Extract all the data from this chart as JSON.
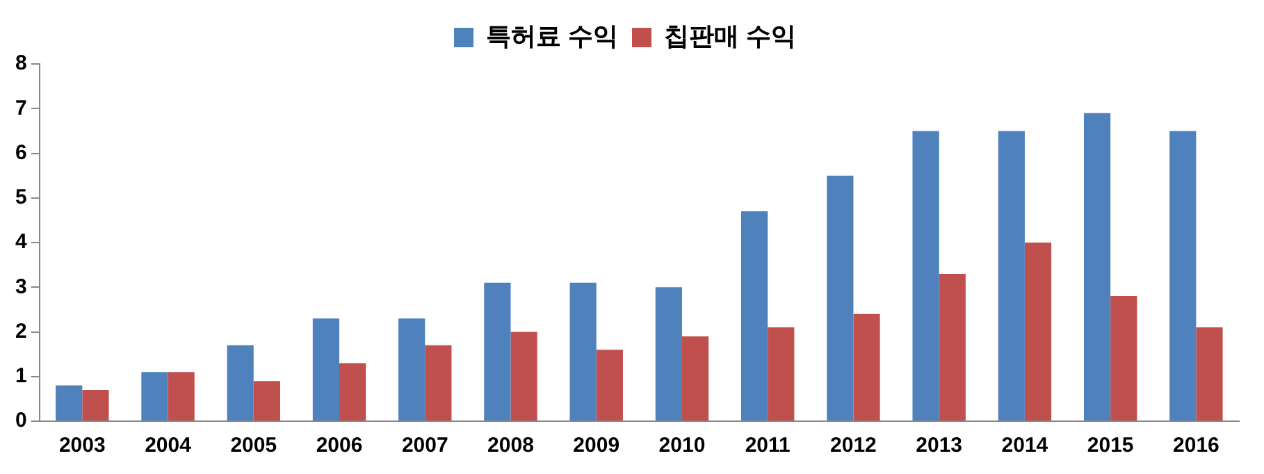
{
  "chart_data": {
    "type": "bar",
    "categories": [
      "2003",
      "2004",
      "2005",
      "2006",
      "2007",
      "2008",
      "2009",
      "2010",
      "2011",
      "2012",
      "2013",
      "2014",
      "2015",
      "2016"
    ],
    "series": [
      {
        "name": "특허료 수익",
        "color": "#4f81bd",
        "values": [
          0.8,
          1.1,
          1.7,
          2.3,
          2.3,
          3.1,
          3.1,
          3.0,
          4.7,
          5.5,
          6.5,
          6.5,
          6.9,
          6.5
        ]
      },
      {
        "name": "칩판매 수익",
        "color": "#c0504d",
        "values": [
          0.7,
          1.1,
          0.9,
          1.3,
          1.7,
          2.0,
          1.6,
          1.9,
          2.1,
          2.4,
          3.3,
          4.0,
          2.8,
          2.1
        ]
      }
    ],
    "ylim": [
      0,
      8
    ],
    "yticks": [
      0,
      1,
      2,
      3,
      4,
      5,
      6,
      7,
      8
    ],
    "grid": false,
    "legend": "top"
  }
}
